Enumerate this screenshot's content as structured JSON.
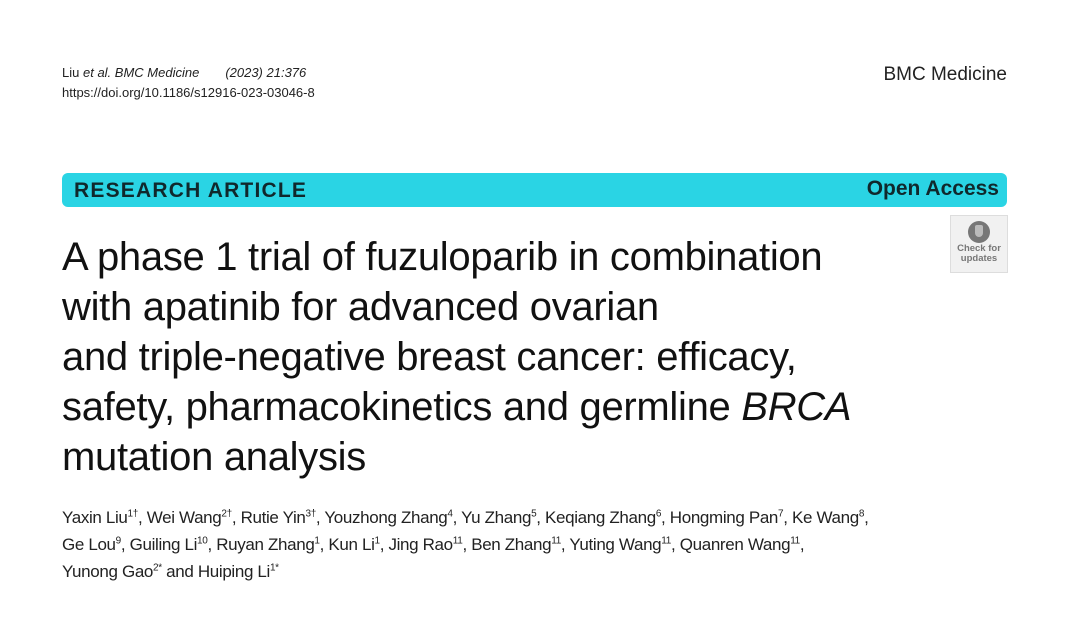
{
  "header": {
    "citation_author": "Liu",
    "citation_etal": "et al. BMC Medicine",
    "citation_year": "(2023) 21:376",
    "doi": "https://doi.org/10.1186/s12916-023-03046-8",
    "journal": "BMC Medicine"
  },
  "banner": {
    "type": "RESEARCH ARTICLE",
    "access": "Open Access",
    "color": "#2ad4e4"
  },
  "check_updates": {
    "line1": "Check for",
    "line2": "updates",
    "icon": "check-for-updates-icon"
  },
  "title": {
    "lines": [
      "A phase 1 trial of fuzuloparib in combination",
      "with apatinib for advanced ovarian",
      "and triple-negative breast cancer: efficacy,",
      "safety, pharmacokinetics and germline "
    ],
    "italic": "BRCA",
    "last": "mutation analysis"
  },
  "authors": [
    [
      [
        "Yaxin Liu",
        "1†"
      ],
      [
        "Wei Wang",
        "2†"
      ],
      [
        "Rutie Yin",
        "3†"
      ],
      [
        "Youzhong Zhang",
        "4"
      ],
      [
        "Yu Zhang",
        "5"
      ],
      [
        "Keqiang Zhang",
        "6"
      ],
      [
        "Hongming Pan",
        "7"
      ],
      [
        "Ke Wang",
        "8"
      ]
    ],
    [
      [
        "Ge Lou",
        "9"
      ],
      [
        "Guiling Li",
        "10"
      ],
      [
        "Ruyan Zhang",
        "1"
      ],
      [
        "Kun Li",
        "1"
      ],
      [
        "Jing Rao",
        "11"
      ],
      [
        "Ben Zhang",
        "11"
      ],
      [
        "Yuting Wang",
        "11"
      ],
      [
        "Quanren Wang",
        "11"
      ]
    ],
    [
      [
        "Yunong Gao",
        "2*"
      ],
      [
        "Huiping Li",
        "1*"
      ]
    ]
  ],
  "and_word": "and"
}
